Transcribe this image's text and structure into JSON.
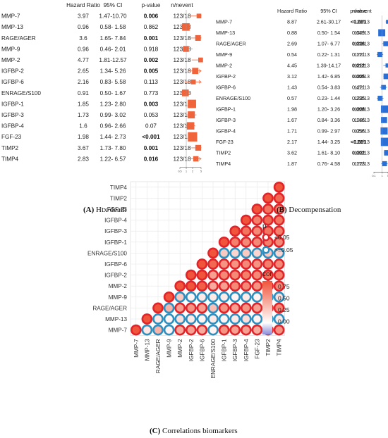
{
  "captions": {
    "a_letter": "(A)",
    "a_text": "Htx/death",
    "b_letter": "(B)",
    "b_text": "Decompensation",
    "c_letter": "(C)",
    "c_text": "Correlations biomarkers"
  },
  "colors": {
    "forest_box": "#f0643c",
    "forest_box_b": "#2a6fd6",
    "sig_ring": "#e0242a",
    "nonsig_ring": "#2d8fc0",
    "cor_high": "#f0543a",
    "cor_zero": "#ffffff",
    "cor_low": "#8a8ad8",
    "grid": "#e6e6e6"
  },
  "chart_data": [
    {
      "type": "table",
      "panel": "A",
      "columns": [
        "",
        "Hazard Ratio",
        "95% CI",
        "p-value",
        "n/nevent"
      ],
      "rows": [
        {
          "name": "MMP-7",
          "hr": "3.97",
          "ci": "1.47-10.70",
          "p": "0.006",
          "n": "123/18",
          "bold": true
        },
        {
          "name": "MMP-13",
          "hr": "0.96",
          "ci": "0.58- 1.58",
          "p": "0.862",
          "n": "123/18",
          "bold": false
        },
        {
          "name": "RAGE/AGER",
          "hr": "3.6",
          "ci": "1.65- 7.84",
          "p": "0.001",
          "n": "123/18",
          "bold": true
        },
        {
          "name": "MMP-9",
          "hr": "0.96",
          "ci": "0.46- 2.01",
          "p": "0.918",
          "n": "123/18",
          "bold": false
        },
        {
          "name": "MMP-2",
          "hr": "4.77",
          "ci": "1.81-12.57",
          "p": "0.002",
          "n": "123/18",
          "bold": true
        },
        {
          "name": "IGFBP-2",
          "hr": "2.65",
          "ci": "1.34- 5.26",
          "p": "0.005",
          "n": "123/18",
          "bold": true
        },
        {
          "name": "IGFBP-6",
          "hr": "2.16",
          "ci": "0.83- 5.58",
          "p": "0.113",
          "n": "123/18",
          "bold": false
        },
        {
          "name": "ENRAGE/S100",
          "hr": "0.91",
          "ci": "0.50- 1.67",
          "p": "0.773",
          "n": "123/18",
          "bold": false
        },
        {
          "name": "IGFBP-1",
          "hr": "1.85",
          "ci": "1.23- 2.80",
          "p": "0.003",
          "n": "123/18",
          "bold": true
        },
        {
          "name": "IGFBP-3",
          "hr": "1.73",
          "ci": "0.99- 3.02",
          "p": "0.053",
          "n": "123/18",
          "bold": false
        },
        {
          "name": "IGFBP-4",
          "hr": "1.6",
          "ci": "0.96- 2.66",
          "p": "0.07",
          "n": "123/18",
          "bold": false
        },
        {
          "name": "FGF-23",
          "hr": "1.98",
          "ci": "1.44- 2.73",
          "p": "<0.001",
          "n": "123/18",
          "bold": true
        },
        {
          "name": "TIMP2",
          "hr": "3.67",
          "ci": "1.73- 7.80",
          "p": "0.001",
          "n": "123/18",
          "bold": true
        },
        {
          "name": "TIMP4",
          "hr": "2.83",
          "ci": "1.22- 6.57",
          "p": "0.016",
          "n": "123/18",
          "bold": true
        }
      ],
      "axis_ticks": [
        "0.5",
        "1",
        "2",
        "5"
      ]
    },
    {
      "type": "table",
      "panel": "B",
      "columns": [
        "",
        "Hazard Ratio",
        "95% CI",
        "p-value",
        "n/nevent"
      ],
      "rows": [
        {
          "name": "MMP-7",
          "hr": "8.87",
          "ci": "2.61-30.17",
          "p": "<0.001",
          "n": "122/13",
          "bold": true
        },
        {
          "name": "MMP-13",
          "hr": "0.88",
          "ci": "0.50- 1.54",
          "p": "0.649",
          "n": "122/13",
          "bold": false
        },
        {
          "name": "RAGE/AGER",
          "hr": "2.69",
          "ci": "1.07- 6.77",
          "p": "0.036",
          "n": "122/13",
          "bold": true
        },
        {
          "name": "MMP-9",
          "hr": "0.54",
          "ci": "0.22- 1.31",
          "p": "0.171",
          "n": "122/13",
          "bold": false
        },
        {
          "name": "MMP-2",
          "hr": "4.45",
          "ci": "1.39-14.17",
          "p": "0.012",
          "n": "122/13",
          "bold": true
        },
        {
          "name": "IGFBP-2",
          "hr": "3.12",
          "ci": "1.42- 6.85",
          "p": "0.005",
          "n": "122/13",
          "bold": true
        },
        {
          "name": "IGFBP-6",
          "hr": "1.43",
          "ci": "0.54- 3.83",
          "p": "0.471",
          "n": "122/13",
          "bold": false
        },
        {
          "name": "ENRAGE/S100",
          "hr": "0.57",
          "ci": "0.23- 1.44",
          "p": "0.235",
          "n": "122/13",
          "bold": false
        },
        {
          "name": "IGFBP-1",
          "hr": "1.98",
          "ci": "1.20- 3.26",
          "p": "0.008",
          "n": "122/13",
          "bold": true
        },
        {
          "name": "IGFBP-3",
          "hr": "1.67",
          "ci": "0.84- 3.36",
          "p": "0.146",
          "n": "122/13",
          "bold": false
        },
        {
          "name": "IGFBP-4",
          "hr": "1.71",
          "ci": "0.99- 2.97",
          "p": "0.056",
          "n": "122/13",
          "bold": false
        },
        {
          "name": "FGF-23",
          "hr": "2.17",
          "ci": "1.44- 3.25",
          "p": "<0.001",
          "n": "122/13",
          "bold": true
        },
        {
          "name": "TIMP2",
          "hr": "3.62",
          "ci": "1.61- 8.10",
          "p": "0.002",
          "n": "122/13",
          "bold": true
        },
        {
          "name": "TIMP4",
          "hr": "1.87",
          "ci": "0.76- 4.58",
          "p": "0.173",
          "n": "122/13",
          "bold": false
        }
      ],
      "axis_ticks": [
        "0.1",
        "1",
        "5"
      ]
    },
    {
      "type": "heatmap",
      "panel": "C",
      "variables": [
        "MMP-7",
        "MMP-13",
        "RAGE/AGER",
        "MMP-9",
        "MMP-2",
        "IGFBP-2",
        "IGFBP-6",
        "ENRAGE/S100",
        "IGFBP-1",
        "IGFBP-3",
        "IGFBP-4",
        "FGF-23",
        "TIMP2",
        "TIMP4"
      ],
      "shape": "lower-triangle circles",
      "cells": [
        [
          0,
          0,
          1.0,
          0
        ],
        [
          1,
          0,
          0.1,
          1
        ],
        [
          1,
          1,
          1.0,
          0
        ],
        [
          2,
          0,
          0.35,
          1
        ],
        [
          2,
          1,
          0.1,
          1
        ],
        [
          2,
          2,
          1.0,
          0
        ],
        [
          3,
          0,
          0.05,
          1
        ],
        [
          3,
          1,
          0.05,
          1
        ],
        [
          3,
          2,
          0.35,
          1
        ],
        [
          3,
          3,
          1.0,
          0
        ],
        [
          4,
          0,
          0.4,
          0
        ],
        [
          4,
          1,
          0.15,
          1
        ],
        [
          4,
          2,
          0.45,
          0
        ],
        [
          4,
          3,
          0.25,
          1
        ],
        [
          4,
          4,
          1.0,
          0
        ],
        [
          5,
          0,
          0.45,
          0
        ],
        [
          5,
          1,
          0.1,
          1
        ],
        [
          5,
          2,
          0.5,
          0
        ],
        [
          5,
          3,
          0.05,
          1
        ],
        [
          5,
          4,
          0.8,
          0
        ],
        [
          5,
          5,
          1.0,
          0
        ],
        [
          6,
          0,
          0.4,
          0
        ],
        [
          6,
          1,
          0.05,
          1
        ],
        [
          6,
          2,
          0.45,
          0
        ],
        [
          6,
          3,
          0.1,
          1
        ],
        [
          6,
          4,
          0.75,
          0
        ],
        [
          6,
          5,
          0.85,
          0
        ],
        [
          6,
          6,
          1.0,
          0
        ],
        [
          7,
          0,
          0.05,
          1
        ],
        [
          7,
          1,
          0.1,
          1
        ],
        [
          7,
          2,
          0.3,
          1
        ],
        [
          7,
          3,
          0.1,
          1
        ],
        [
          7,
          4,
          0.4,
          0
        ],
        [
          7,
          5,
          0.45,
          0
        ],
        [
          7,
          6,
          0.7,
          0
        ],
        [
          7,
          7,
          1.0,
          0
        ],
        [
          8,
          0,
          0.5,
          0
        ],
        [
          8,
          1,
          0.05,
          1
        ],
        [
          8,
          2,
          0.5,
          0
        ],
        [
          8,
          3,
          0.1,
          1
        ],
        [
          8,
          4,
          0.45,
          0
        ],
        [
          8,
          5,
          0.55,
          0
        ],
        [
          8,
          6,
          0.5,
          0
        ],
        [
          8,
          7,
          0.25,
          1
        ],
        [
          8,
          8,
          1.0,
          0
        ],
        [
          9,
          0,
          0.45,
          0
        ],
        [
          9,
          1,
          0.1,
          1
        ],
        [
          9,
          2,
          0.45,
          0
        ],
        [
          9,
          3,
          0.05,
          1
        ],
        [
          9,
          4,
          0.55,
          0
        ],
        [
          9,
          5,
          0.55,
          0
        ],
        [
          9,
          6,
          0.5,
          0
        ],
        [
          9,
          7,
          0.2,
          1
        ],
        [
          9,
          8,
          0.6,
          0
        ],
        [
          9,
          9,
          1.0,
          0
        ],
        [
          10,
          0,
          0.45,
          0
        ],
        [
          10,
          1,
          0.15,
          1
        ],
        [
          10,
          2,
          0.5,
          0
        ],
        [
          10,
          3,
          0.1,
          1
        ],
        [
          10,
          4,
          0.55,
          0
        ],
        [
          10,
          5,
          0.6,
          0
        ],
        [
          10,
          6,
          0.55,
          0
        ],
        [
          10,
          7,
          0.25,
          1
        ],
        [
          10,
          8,
          0.55,
          0
        ],
        [
          10,
          9,
          0.65,
          0
        ],
        [
          10,
          10,
          1.0,
          0
        ],
        [
          11,
          0,
          0.4,
          0
        ],
        [
          11,
          1,
          0.05,
          1
        ],
        [
          11,
          2,
          0.45,
          0
        ],
        [
          11,
          3,
          0.05,
          1
        ],
        [
          11,
          4,
          0.5,
          0
        ],
        [
          11,
          5,
          0.55,
          0
        ],
        [
          11,
          6,
          0.5,
          0
        ],
        [
          11,
          7,
          0.2,
          1
        ],
        [
          11,
          8,
          0.55,
          0
        ],
        [
          11,
          9,
          0.55,
          0
        ],
        [
          11,
          10,
          0.6,
          0
        ],
        [
          11,
          11,
          1.0,
          0
        ],
        [
          12,
          0,
          0.55,
          0
        ],
        [
          12,
          1,
          0.05,
          1
        ],
        [
          12,
          2,
          0.55,
          0
        ],
        [
          12,
          3,
          0.15,
          1
        ],
        [
          12,
          4,
          0.6,
          0
        ],
        [
          12,
          5,
          0.65,
          0
        ],
        [
          12,
          6,
          0.6,
          0
        ],
        [
          12,
          7,
          0.25,
          1
        ],
        [
          12,
          8,
          0.6,
          0
        ],
        [
          12,
          9,
          0.65,
          0
        ],
        [
          12,
          10,
          0.7,
          0
        ],
        [
          12,
          11,
          0.65,
          0
        ],
        [
          12,
          12,
          1.0,
          0
        ],
        [
          13,
          0,
          0.5,
          0
        ],
        [
          13,
          1,
          0.1,
          1
        ],
        [
          13,
          2,
          0.55,
          0
        ],
        [
          13,
          3,
          0.15,
          1
        ],
        [
          13,
          4,
          0.55,
          0
        ],
        [
          13,
          5,
          0.6,
          0
        ],
        [
          13,
          6,
          0.55,
          0
        ],
        [
          13,
          7,
          0.2,
          1
        ],
        [
          13,
          8,
          0.55,
          0
        ],
        [
          13,
          9,
          0.6,
          0
        ],
        [
          13,
          10,
          0.65,
          0
        ],
        [
          13,
          11,
          0.6,
          0
        ],
        [
          13,
          12,
          0.7,
          0
        ],
        [
          13,
          13,
          1.0,
          0
        ]
      ],
      "cells_format": "[row, col, cor, nonsignificant(1)/significant(0)]",
      "legend_p_title": "p",
      "legend_p": [
        "<0.05",
        ">=0.05"
      ],
      "legend_cor_title": "cor",
      "legend_cor_ticks": [
        "0.75",
        "0.50",
        "0.25",
        "0.00"
      ]
    }
  ]
}
